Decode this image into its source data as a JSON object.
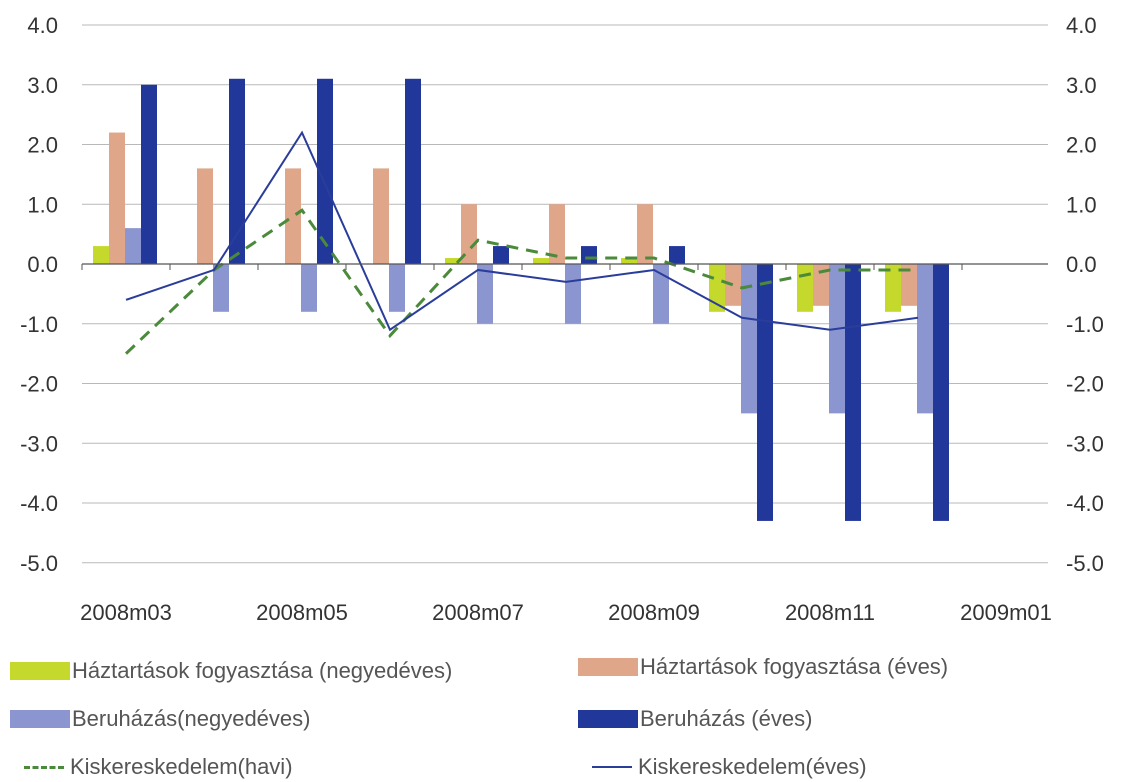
{
  "chart_data": {
    "type": "bar",
    "categories": [
      "2008m03",
      "2008m04",
      "2008m05",
      "2008m06",
      "2008m07",
      "2008m08",
      "2008m09",
      "2008m10",
      "2008m11",
      "2008m12"
    ],
    "x_tick_labels": [
      "2008m03",
      "2008m05",
      "2008m07",
      "2008m09",
      "2008m11",
      "2009m01"
    ],
    "ylim": [
      -5,
      4
    ],
    "yticks": [
      "4.0",
      "3.0",
      "2.0",
      "1.0",
      "0.0",
      "-1.0",
      "-2.0",
      "-3.0",
      "-4.0",
      "-5.0"
    ],
    "right_axis_ticks": [
      "4.0",
      "3.0",
      "2.0",
      "1.0",
      "0.0",
      "-1.0",
      "-2.0",
      "-3.0",
      "-4.0",
      "-5.0"
    ],
    "grid": true,
    "series": [
      {
        "name": "Háztartások fogyasztása (negyedéves)",
        "kind": "bar",
        "color": "#c5d92d",
        "values": [
          0.3,
          null,
          null,
          null,
          0.1,
          0.1,
          0.1,
          -0.8,
          -0.8,
          -0.8
        ]
      },
      {
        "name": "Háztartások fogyasztása (éves)",
        "kind": "bar",
        "color": "#e0a68a",
        "values": [
          2.2,
          1.6,
          1.6,
          1.6,
          1.0,
          1.0,
          1.0,
          -0.7,
          -0.7,
          -0.7
        ]
      },
      {
        "name": "Beruházás(negyedéves)",
        "kind": "bar",
        "color": "#8b95d0",
        "values": [
          0.6,
          -0.8,
          -0.8,
          -0.8,
          -1.0,
          -1.0,
          -1.0,
          -2.5,
          -2.5,
          -2.5
        ]
      },
      {
        "name": "Beruházás (éves)",
        "kind": "bar",
        "color": "#22379a",
        "values": [
          3.0,
          3.1,
          3.1,
          3.1,
          0.3,
          0.3,
          0.3,
          -4.3,
          -4.3,
          -4.3
        ]
      },
      {
        "name": "Kiskereskedelem(havi)",
        "kind": "line",
        "style": "dashed",
        "color": "#4a8a3a",
        "values": [
          -1.5,
          -0.1,
          0.9,
          -1.2,
          0.4,
          0.1,
          0.1,
          -0.4,
          -0.1,
          -0.1
        ]
      },
      {
        "name": "Kiskereskedelem(éves)",
        "kind": "line",
        "style": "solid",
        "color": "#2a3d9a",
        "values": [
          -0.6,
          -0.1,
          2.2,
          -1.1,
          -0.1,
          -0.3,
          -0.1,
          -0.9,
          -1.1,
          -0.9
        ]
      }
    ]
  }
}
